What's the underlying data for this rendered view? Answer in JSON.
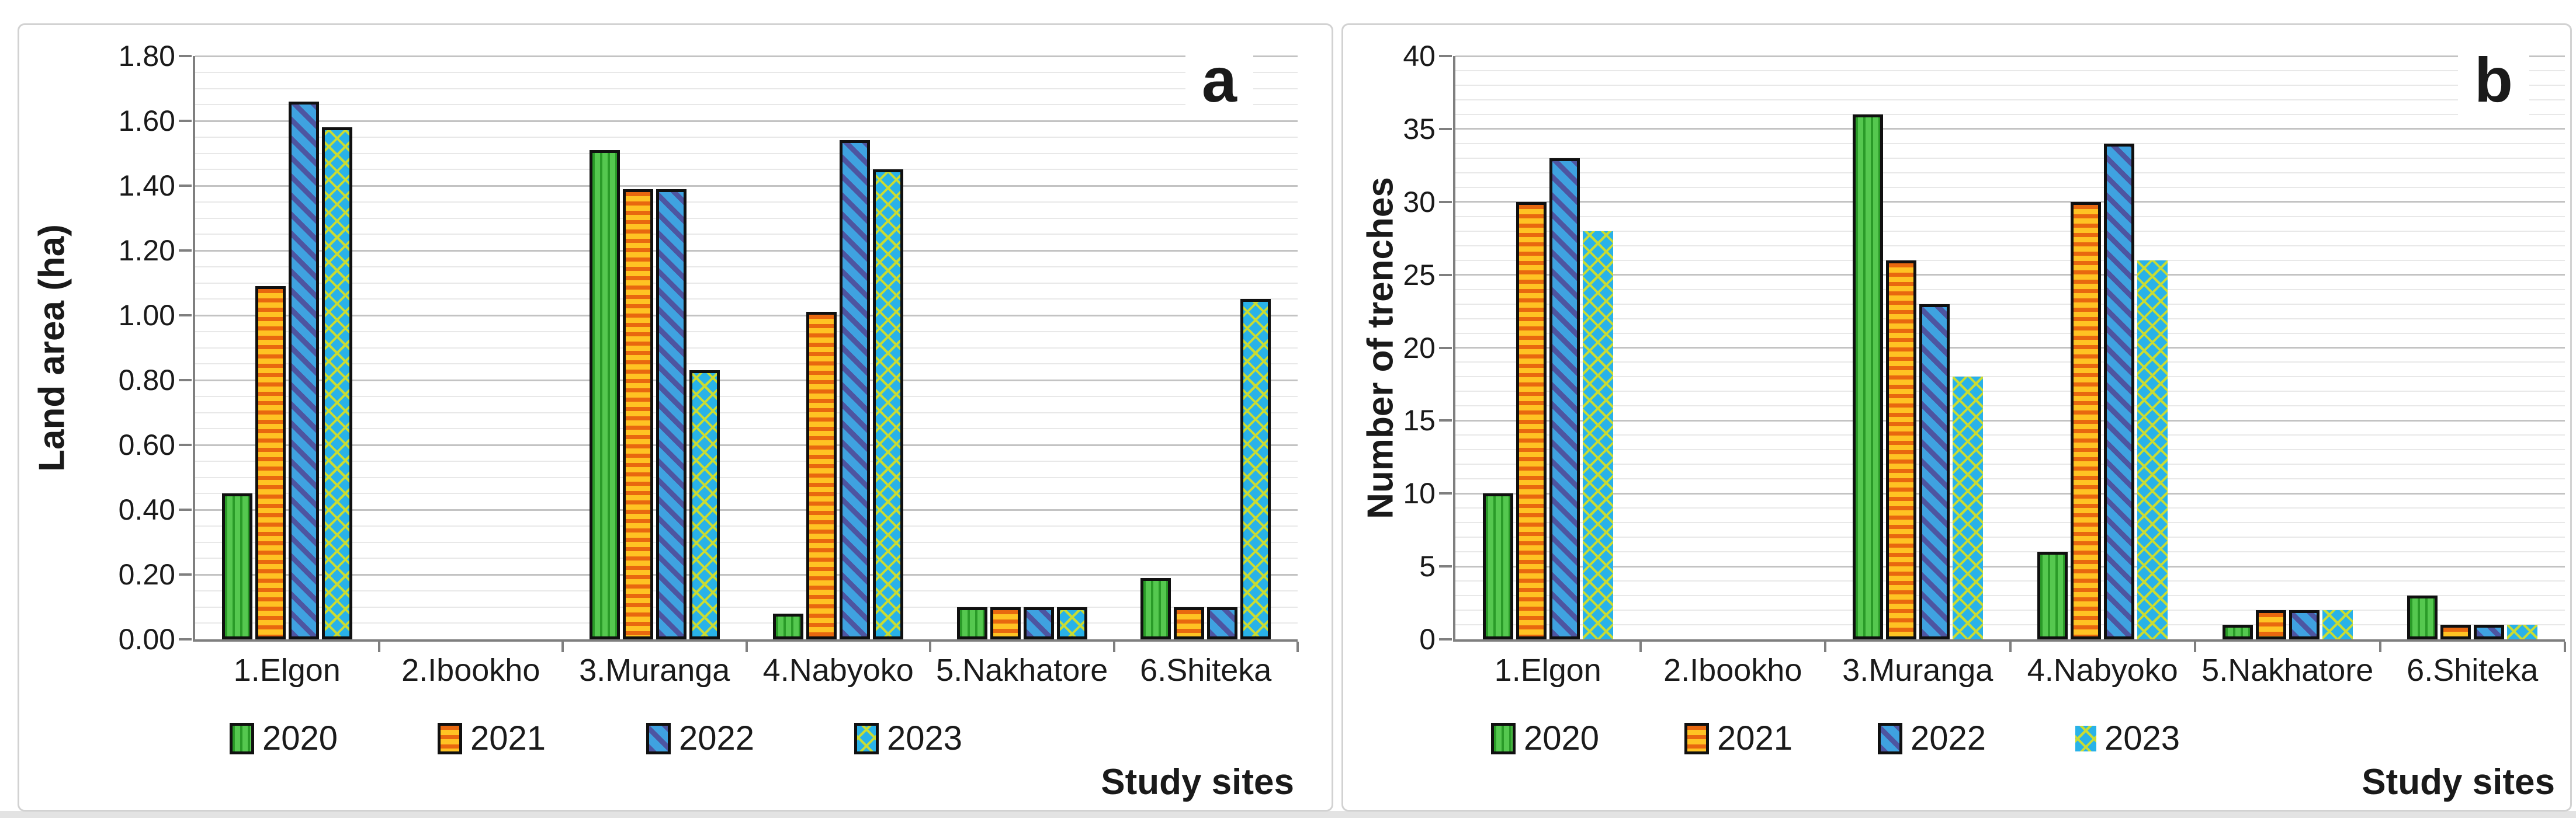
{
  "chart_data": [
    {
      "type": "bar",
      "panel_label": "a",
      "ylabel": "Land area (ha)",
      "xlabel": "Study sites",
      "categories": [
        "1.Elgon",
        "2.Ibookho",
        "3.Muranga",
        "4.Nabyoko",
        "5.Nakhatore",
        "6.Shiteka"
      ],
      "series": [
        {
          "name": "2020",
          "values": [
            0.45,
            0,
            1.51,
            0.08,
            0.1,
            0.19
          ]
        },
        {
          "name": "2021",
          "values": [
            1.09,
            0,
            1.39,
            1.01,
            0.1,
            0.1
          ]
        },
        {
          "name": "2022",
          "values": [
            1.66,
            0,
            1.39,
            1.54,
            0.1,
            0.1
          ]
        },
        {
          "name": "2023",
          "values": [
            1.58,
            0,
            0.83,
            1.45,
            0.1,
            1.05
          ]
        }
      ],
      "ylim": [
        0,
        1.8
      ],
      "yticks": [
        "0.00",
        "0.20",
        "0.40",
        "0.60",
        "0.80",
        "1.00",
        "1.20",
        "1.40",
        "1.60",
        "1.80"
      ],
      "minor_per_major": 3,
      "grid": true,
      "legend_position": "bottom",
      "legend_labels": [
        "2020",
        "2021",
        "2022",
        "2023"
      ],
      "borderless_series": []
    },
    {
      "type": "bar",
      "panel_label": "b",
      "ylabel": "Number of trenches",
      "xlabel": "Study sites",
      "categories": [
        "1.Elgon",
        "2.Ibookho",
        "3.Muranga",
        "4.Nabyoko",
        "5.Nakhatore",
        "6.Shiteka"
      ],
      "series": [
        {
          "name": "2020",
          "values": [
            10,
            0,
            36,
            6,
            1,
            3
          ]
        },
        {
          "name": "2021",
          "values": [
            30,
            0,
            26,
            30,
            2,
            1
          ]
        },
        {
          "name": "2022",
          "values": [
            33,
            0,
            23,
            34,
            2,
            1
          ]
        },
        {
          "name": "2023",
          "values": [
            28,
            0,
            18,
            26,
            2,
            1
          ]
        }
      ],
      "ylim": [
        0,
        40
      ],
      "yticks": [
        "0",
        "5",
        "10",
        "15",
        "20",
        "25",
        "30",
        "35",
        "40"
      ],
      "minor_per_major": 4,
      "grid": true,
      "legend_position": "bottom",
      "legend_labels": [
        "2020",
        "2021",
        "2022",
        "2023"
      ],
      "borderless_series": [
        "2023"
      ]
    }
  ],
  "series_patterns": {
    "2020": "green-vertical-stripes",
    "2021": "orange-horizontal-stripes",
    "2022": "blue-diagonal-stripes",
    "2023": "cyan-crosshatch"
  },
  "colors": {
    "green_light": "#55C84F",
    "green_dark": "#2A9B28",
    "orange_light": "#FFC323",
    "orange_dark": "#E8680F",
    "blue_light": "#3FA2E0",
    "blue_dark": "#4D55A1",
    "cyan_base": "#29B2E8",
    "hatch_yellow": "#C9DC33",
    "gridline_major": "#C3C3C3",
    "gridline_minor": "#E8E8E8",
    "axis": "#7F7F7F",
    "bar_border": "#101010",
    "panel_border": "#D2D2D2"
  }
}
